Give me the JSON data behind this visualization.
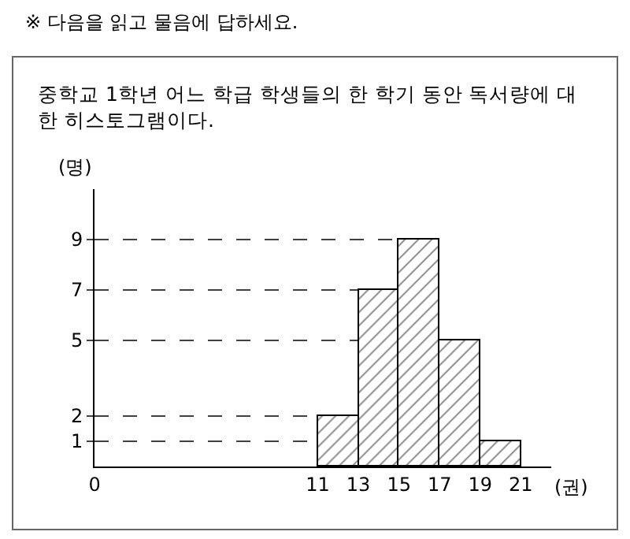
{
  "chart_data": {
    "type": "histogram",
    "title": "※ 다음을 읽고 물음에 답하세요.",
    "subtitle": "중학교 1학년 어느 학급 학생들의 한 학기 동안 독서량에 대\n한 히스토그램이다.",
    "xlabel": "(권)",
    "ylabel": "(명)",
    "bins": [
      11,
      13,
      15,
      17,
      19,
      21
    ],
    "values": [
      2,
      7,
      9,
      5,
      1
    ],
    "color": "#000000",
    "xlim": [
      0,
      22.5
    ],
    "xticks": [
      0,
      11,
      13,
      15,
      17,
      19,
      21
    ],
    "ylim": [
      0,
      11
    ],
    "yticks": [
      1,
      2,
      5,
      7,
      9
    ],
    "grid": false,
    "legend": false,
    "ref_lines": [
      {
        "axis": "y",
        "value": 1,
        "line_style": "dashed"
      },
      {
        "axis": "y",
        "value": 2,
        "line_style": "dashed"
      },
      {
        "axis": "y",
        "value": 5,
        "line_style": "dashed"
      },
      {
        "axis": "y",
        "value": 7,
        "line_style": "dashed"
      },
      {
        "axis": "y",
        "value": 9,
        "line_style": "dashed"
      }
    ]
  }
}
